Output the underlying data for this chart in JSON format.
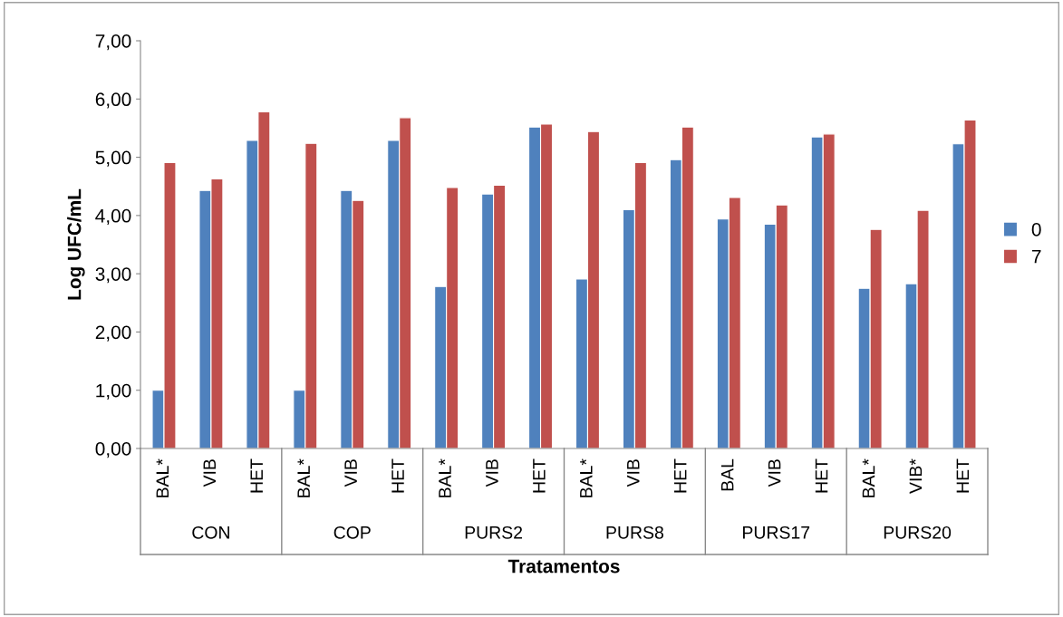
{
  "chart_data": {
    "type": "bar",
    "categories": [
      "BAL*",
      "VIB",
      "HET",
      "BAL*",
      "VIB",
      "HET",
      "BAL*",
      "VIB",
      "HET",
      "BAL*",
      "VIB",
      "HET",
      "BAL",
      "VIB",
      "HET",
      "BAL*",
      "VIB*",
      "HET"
    ],
    "series": [
      {
        "name": "0",
        "color": "#4f81bd",
        "values": [
          1.0,
          4.43,
          5.29,
          1.0,
          4.43,
          5.29,
          2.78,
          4.37,
          5.52,
          2.91,
          4.1,
          4.96,
          3.94,
          3.85,
          5.35,
          2.75,
          2.83,
          5.23
        ]
      },
      {
        "name": "7",
        "color": "#c0504d",
        "values": [
          4.91,
          4.63,
          5.78,
          5.24,
          4.26,
          5.68,
          4.48,
          4.52,
          5.57,
          5.44,
          4.91,
          5.52,
          4.31,
          4.18,
          5.4,
          3.76,
          4.09,
          5.64
        ]
      }
    ],
    "annotations": [
      "CON",
      "COP",
      "PURS2",
      "PURS8",
      "PURS17",
      "PURS20"
    ],
    "xlabel": "Tratamentos",
    "ylabel": "Log UFC/mL",
    "ylim": [
      0,
      7
    ],
    "yticks": [
      {
        "value": 0,
        "label": "0,00"
      },
      {
        "value": 1,
        "label": "1,00"
      },
      {
        "value": 2,
        "label": "2,00"
      },
      {
        "value": 3,
        "label": "3,00"
      },
      {
        "value": 4,
        "label": "4,00"
      },
      {
        "value": 5,
        "label": "5,00"
      },
      {
        "value": 6,
        "label": "6,00"
      },
      {
        "value": 7,
        "label": "7,00"
      }
    ],
    "grid": false,
    "legend": "right"
  }
}
